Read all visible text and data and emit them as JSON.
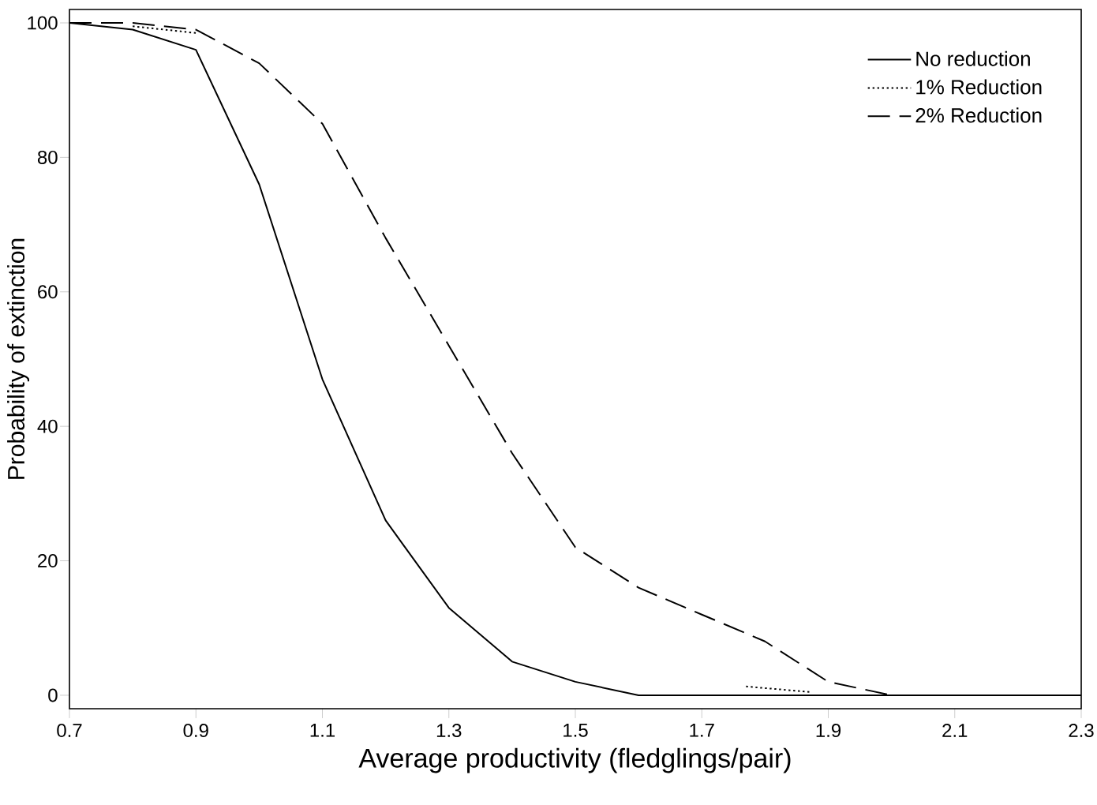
{
  "chart_data": {
    "type": "line",
    "xlabel": "Average productivity (fledglings/pair)",
    "ylabel": "Probability of extinction",
    "x": [
      0.7,
      0.8,
      0.9,
      1.0,
      1.1,
      1.2,
      1.3,
      1.4,
      1.5,
      1.6,
      1.7,
      1.8,
      1.9,
      2.0,
      2.1,
      2.2,
      2.3
    ],
    "series": [
      {
        "name": "No reduction",
        "color": "#000000",
        "line_style": "solid",
        "values": [
          100,
          99,
          96,
          76,
          47,
          26,
          13,
          5,
          2,
          0,
          0,
          0,
          0,
          0,
          0,
          0,
          0
        ]
      },
      {
        "name": "1% Reduction",
        "color": "#000000",
        "line_style": "dotted",
        "x": [
          0.8,
          0.9,
          1.0,
          1.77,
          1.87
        ],
        "values": [
          99.5,
          98.5,
          null,
          1.3,
          0.5
        ]
      },
      {
        "name": "2% Reduction",
        "color": "#000000",
        "line_style": "dashed",
        "values": [
          100,
          100,
          99,
          94,
          85,
          68,
          52,
          36,
          22,
          16,
          12,
          8,
          2,
          0,
          0,
          0,
          0
        ]
      }
    ],
    "xlim": [
      0.7,
      2.3
    ],
    "ylim": [
      -2,
      102
    ],
    "xticks": [
      0.7,
      0.9,
      1.1,
      1.3,
      1.5,
      1.7,
      1.9,
      2.1,
      2.3
    ],
    "yticks": [
      0,
      20,
      40,
      60,
      80,
      100
    ],
    "grid": false,
    "legend": "top right",
    "marker": "none"
  }
}
